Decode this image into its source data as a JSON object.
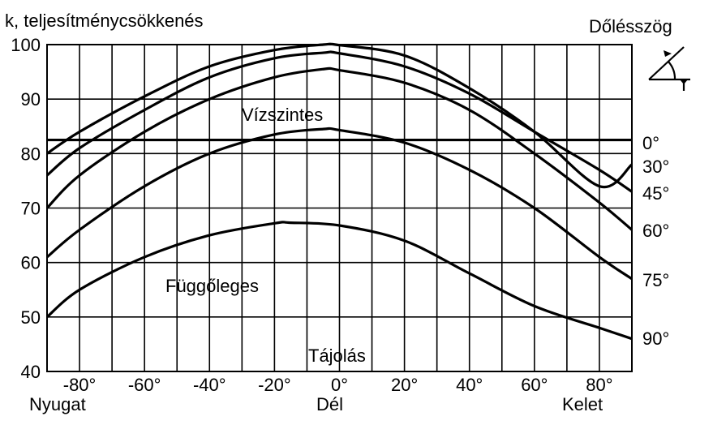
{
  "chart_data": {
    "type": "line",
    "ylabel": "k, teljesítménycsökkenés",
    "xlabel": "Tájolás",
    "legend_title": "Dőlésszög",
    "x_direction_labels": {
      "left": "Nyugat",
      "center": "Dél",
      "right": "Kelet"
    },
    "annotations": {
      "horizontal": "Vízszintes",
      "vertical": "Függőleges"
    },
    "xlim": [
      -90,
      90
    ],
    "ylim": [
      40,
      100
    ],
    "xticks": [
      -80,
      -60,
      -40,
      -20,
      0,
      20,
      40,
      60,
      80
    ],
    "xtick_labels": [
      "-80°",
      "-60°",
      "-40°",
      "-20°",
      "0°",
      "20°",
      "40°",
      "60°",
      "80°"
    ],
    "yticks": [
      40,
      50,
      60,
      70,
      80,
      90,
      100
    ],
    "ytick_labels": [
      "40",
      "50",
      "60",
      "70",
      "80",
      "90",
      "100"
    ],
    "grid": true,
    "series": [
      {
        "name": "0°",
        "x": [
          -90,
          90
        ],
        "y": [
          82.5,
          82.5
        ]
      },
      {
        "name": "30°",
        "x": [
          -90,
          -80,
          -60,
          -40,
          -20,
          -5,
          0,
          20,
          40,
          60,
          80,
          90
        ],
        "y": [
          80,
          84,
          90.5,
          96,
          99,
          100,
          99.9,
          98,
          92,
          84,
          74,
          78
        ]
      },
      {
        "name": "45°",
        "x": [
          -90,
          -80,
          -60,
          -40,
          -20,
          -5,
          0,
          20,
          40,
          60,
          80,
          90
        ],
        "y": [
          76,
          81,
          88,
          94,
          97.5,
          98.5,
          98.4,
          96,
          91,
          84,
          77,
          73
        ]
      },
      {
        "name": "60°",
        "x": [
          -90,
          -80,
          -60,
          -40,
          -20,
          -5,
          0,
          20,
          40,
          60,
          80,
          90
        ],
        "y": [
          70,
          76,
          84,
          90,
          94,
          95.5,
          95.3,
          93,
          88,
          80,
          71,
          66
        ]
      },
      {
        "name": "75°",
        "x": [
          -90,
          -80,
          -60,
          -40,
          -20,
          -5,
          0,
          20,
          40,
          60,
          80,
          90
        ],
        "y": [
          61,
          66,
          74,
          80,
          83.5,
          84.5,
          84.3,
          82,
          77,
          70,
          61,
          57
        ]
      },
      {
        "name": "90°",
        "x": [
          -90,
          -80,
          -60,
          -40,
          -20,
          -15,
          0,
          20,
          40,
          60,
          80,
          90
        ],
        "y": [
          50,
          55,
          61,
          65,
          67.2,
          67.3,
          66.8,
          64,
          58,
          52,
          48,
          46
        ]
      }
    ]
  }
}
